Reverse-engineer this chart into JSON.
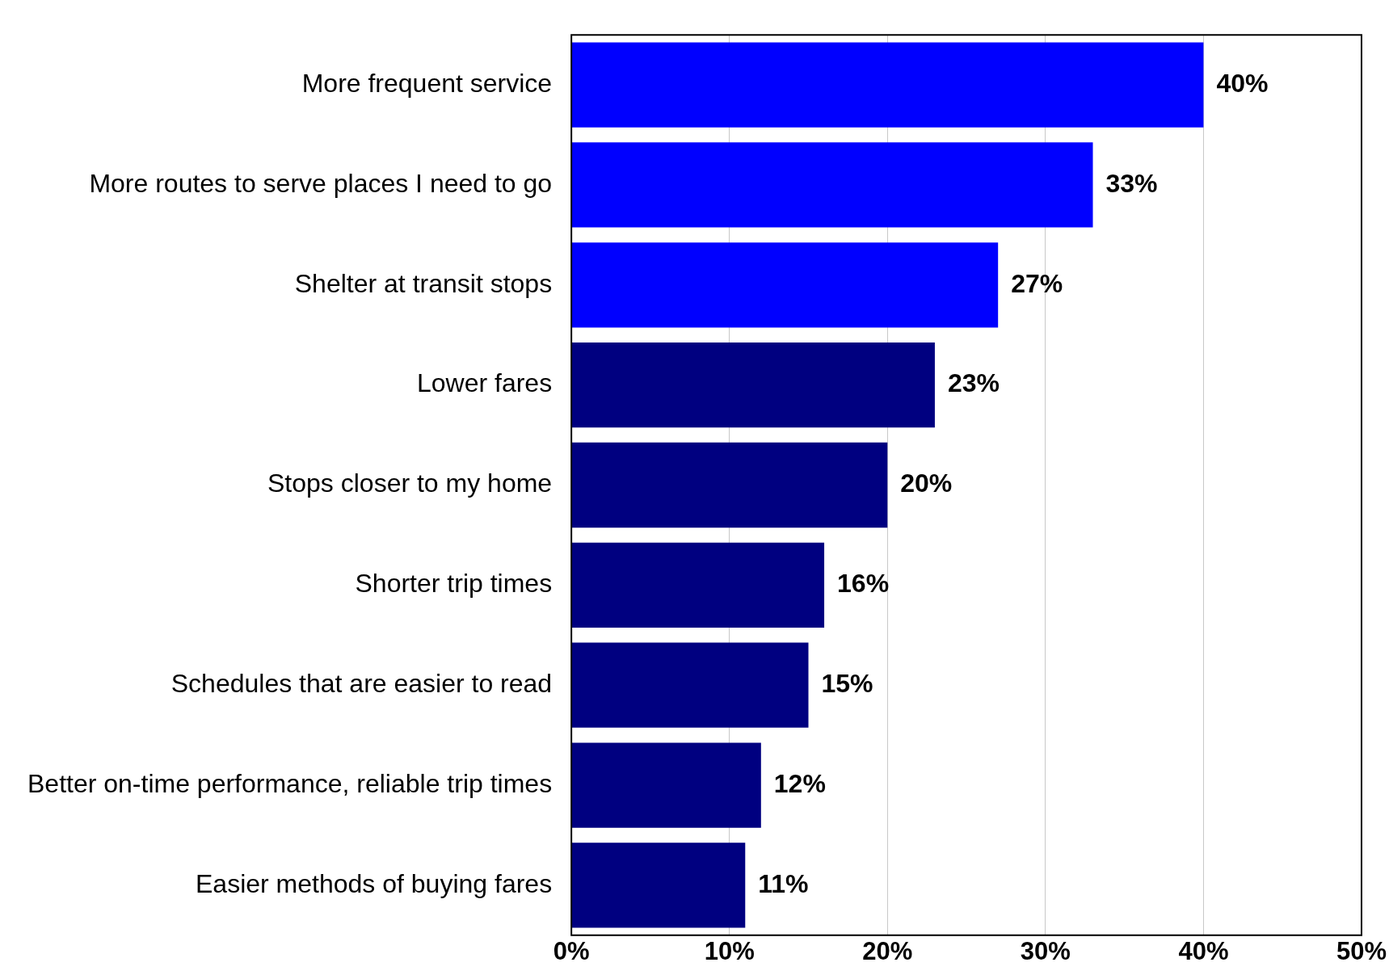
{
  "chart_data": {
    "type": "bar",
    "orientation": "horizontal",
    "categories": [
      "More frequent service",
      "More routes to serve places I need to go",
      "Shelter at transit stops",
      "Lower fares",
      "Stops closer to my home",
      "Shorter trip times",
      "Schedules that are easier to read",
      "Better on-time performance, reliable trip times",
      "Easier methods of buying fares"
    ],
    "values": [
      40,
      33,
      27,
      23,
      20,
      16,
      15,
      12,
      11
    ],
    "colors": [
      "#0000ff",
      "#0000ff",
      "#0000ff",
      "#000080",
      "#000080",
      "#000080",
      "#000080",
      "#000080",
      "#000080"
    ],
    "xlim": [
      0,
      50
    ],
    "xticks": [
      {
        "value": 0,
        "label": "0%"
      },
      {
        "value": 10,
        "label": "10%"
      },
      {
        "value": 20,
        "label": "20%"
      },
      {
        "value": 30,
        "label": "30%"
      },
      {
        "value": 40,
        "label": "40%"
      },
      {
        "value": 50,
        "label": "50%"
      }
    ],
    "value_labels": [
      "40%",
      "33%",
      "27%",
      "23%",
      "20%",
      "16%",
      "15%",
      "12%",
      "11%"
    ],
    "grid": "x",
    "legend": false
  }
}
